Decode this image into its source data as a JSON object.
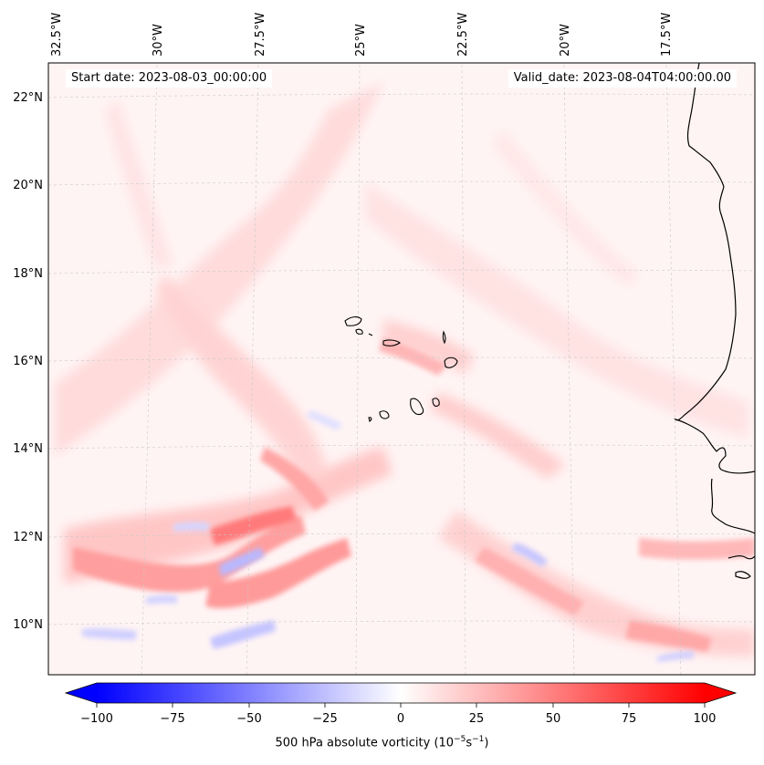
{
  "header": {
    "start_date": "Start date: 2023-08-03_00:00:00",
    "valid_date": "Valid_date: 2023-08-04T04:00:00.00"
  },
  "map": {
    "lon_labels": [
      "32.5°W",
      "30°W",
      "27.5°W",
      "25°W",
      "22.5°W",
      "20°W",
      "17.5°W"
    ],
    "lat_labels": [
      "22°N",
      "20°N",
      "18°N",
      "16°N",
      "14°N",
      "12°N",
      "10°N"
    ],
    "colors": {
      "positive": "#ff0000",
      "negative": "#0000ff",
      "neutral": "#ffffff",
      "coastline": "#000000"
    }
  },
  "colorbar": {
    "ticks": [
      "−100",
      "−75",
      "−50",
      "−25",
      "0",
      "25",
      "50",
      "75",
      "100"
    ],
    "range": [
      -100,
      100
    ],
    "label": "500 hPa absolute vorticity (10",
    "label_exp1": "−5",
    "label_mid": "s",
    "label_exp2": "−1",
    "label_end": ")"
  }
}
